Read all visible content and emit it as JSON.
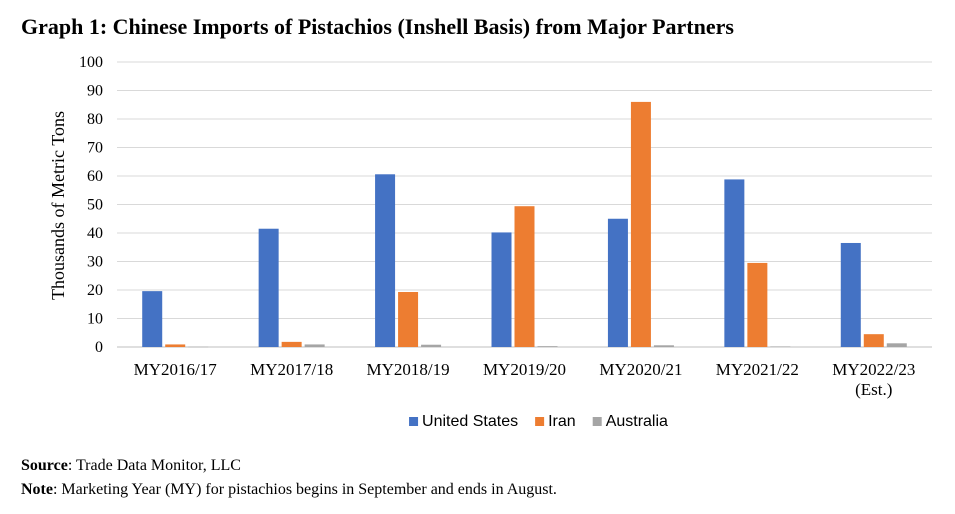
{
  "title": "Graph 1: Chinese Imports of Pistachios (Inshell Basis) from Major Partners",
  "footer": {
    "source_label": "Source",
    "source_text": ": Trade Data Monitor, LLC",
    "note_label": "Note",
    "note_text": ": Marketing Year (MY) for pistachios begins in September and ends in August."
  },
  "chart_data": {
    "type": "bar",
    "title": "Graph 1: Chinese Imports of Pistachios (Inshell Basis) from Major Partners",
    "xlabel": "",
    "ylabel": "Thousands of Metric Tons",
    "ylim": [
      0,
      100
    ],
    "yticks": [
      0,
      10,
      20,
      30,
      40,
      50,
      60,
      70,
      80,
      90,
      100
    ],
    "grid": true,
    "legend_position": "bottom",
    "categories": [
      [
        "MY2016/17"
      ],
      [
        "MY2017/18"
      ],
      [
        "MY2018/19"
      ],
      [
        "MY2019/20"
      ],
      [
        "MY2020/21"
      ],
      [
        "MY2021/22"
      ],
      [
        "MY2022/23",
        "(Est.)"
      ]
    ],
    "series": [
      {
        "name": "United States",
        "color": "#4472C4",
        "values": [
          19.6,
          41.5,
          60.6,
          40.2,
          45.0,
          58.8,
          36.5
        ]
      },
      {
        "name": "Iran",
        "color": "#ED7D31",
        "values": [
          0.9,
          1.8,
          19.3,
          49.4,
          86.0,
          29.5,
          4.5
        ]
      },
      {
        "name": "Australia",
        "color": "#A5A5A5",
        "values": [
          0.1,
          0.9,
          0.8,
          0.3,
          0.6,
          0.2,
          1.3
        ]
      }
    ]
  }
}
